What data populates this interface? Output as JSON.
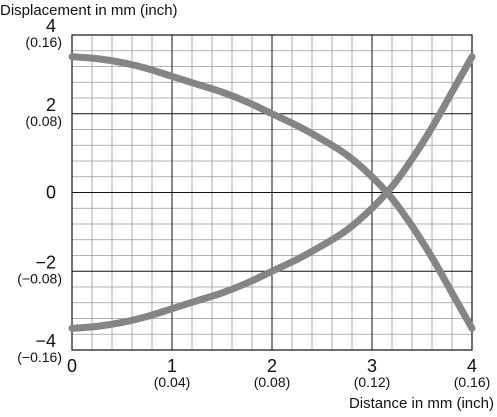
{
  "chart_data": {
    "type": "line",
    "title": "",
    "xlabel": "Distance in mm (inch)",
    "ylabel": "Displacement in mm (inch)",
    "xlim": [
      0,
      4
    ],
    "ylim": [
      -4,
      4
    ],
    "grid": true,
    "legend": "none",
    "x_ticks": [
      {
        "value": 0,
        "label": "0",
        "sublabel": ""
      },
      {
        "value": 1,
        "label": "1",
        "sublabel": "(0.04)"
      },
      {
        "value": 2,
        "label": "2",
        "sublabel": "(0.08)"
      },
      {
        "value": 3,
        "label": "3",
        "sublabel": "(0.12)"
      },
      {
        "value": 4,
        "label": "4",
        "sublabel": "(0.16)"
      }
    ],
    "y_ticks": [
      {
        "value": 4,
        "label": "4",
        "sublabel": "(0.16)"
      },
      {
        "value": 2,
        "label": "2",
        "sublabel": "(0.08)"
      },
      {
        "value": 0,
        "label": "0",
        "sublabel": ""
      },
      {
        "value": -2,
        "label": "−2",
        "sublabel": "(−0.08)"
      },
      {
        "value": -4,
        "label": "−4",
        "sublabel": "(−0.16)"
      }
    ],
    "series": [
      {
        "color": "#858585",
        "x": [
          0,
          0.25,
          0.5,
          0.75,
          1.0,
          1.25,
          1.5,
          1.75,
          2.0,
          2.25,
          2.5,
          2.75,
          3.0,
          3.2,
          3.4,
          3.6,
          3.8,
          4.0
        ],
        "y": [
          -3.45,
          -3.4,
          -3.3,
          -3.15,
          -2.95,
          -2.75,
          -2.55,
          -2.3,
          -2.0,
          -1.7,
          -1.35,
          -0.95,
          -0.4,
          0.15,
          0.85,
          1.65,
          2.55,
          3.45
        ]
      },
      {
        "color": "#858585",
        "x": [
          0,
          0.25,
          0.5,
          0.75,
          1.0,
          1.25,
          1.5,
          1.75,
          2.0,
          2.25,
          2.5,
          2.75,
          3.0,
          3.2,
          3.4,
          3.6,
          3.8,
          4.0
        ],
        "y": [
          3.45,
          3.4,
          3.3,
          3.15,
          2.95,
          2.75,
          2.55,
          2.3,
          2.0,
          1.7,
          1.35,
          0.95,
          0.4,
          -0.15,
          -0.85,
          -1.65,
          -2.55,
          -3.45
        ]
      }
    ]
  }
}
